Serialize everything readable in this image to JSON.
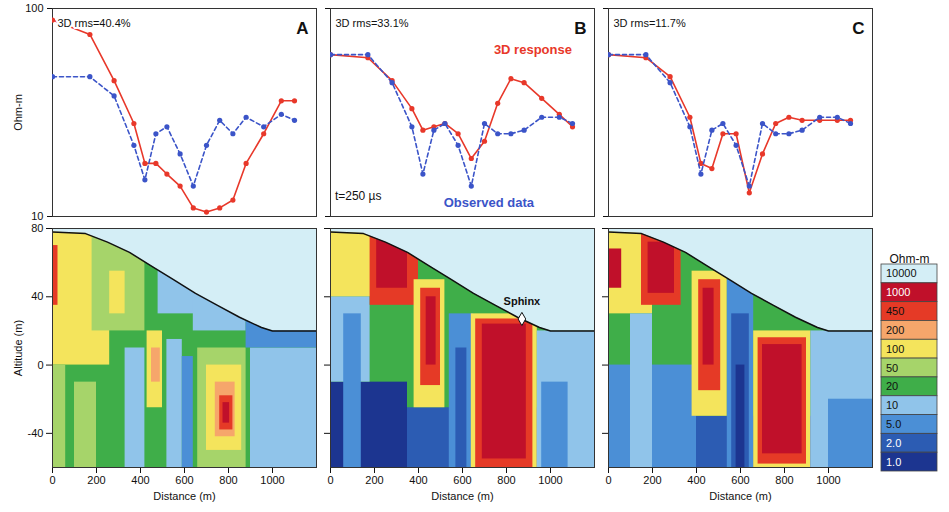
{
  "chart_data": [
    {
      "type": "line",
      "panel_label": "A",
      "title": "3D rms=40.4%",
      "ylabel": "Ohm-m",
      "log": "y",
      "tick_labels": "y",
      "xlim": [
        0,
        1200
      ],
      "ylim": [
        10,
        100
      ],
      "yticks": [
        10,
        100
      ],
      "x": [
        0,
        170,
        280,
        370,
        420,
        470,
        520,
        580,
        640,
        700,
        760,
        820,
        880,
        960,
        1040,
        1100
      ],
      "series": [
        {
          "color": "#e8382a",
          "marker": "circle",
          "line_style": "solid",
          "values": [
            88,
            75,
            45,
            28,
            18,
            18,
            16,
            14,
            11,
            10.5,
            11,
            12,
            18,
            25,
            36,
            36
          ]
        },
        {
          "color": "#3b54c8",
          "marker": "circle",
          "line_style": "dashed",
          "values": [
            47,
            47,
            38,
            22,
            15,
            25,
            27,
            20,
            14,
            22,
            29,
            25,
            30,
            27,
            31,
            29
          ]
        }
      ]
    },
    {
      "type": "heatmap",
      "xlabel": "Distance (m)",
      "ylabel": "Altitude (m)",
      "tick_labels": true,
      "xlim": [
        0,
        1200
      ],
      "ylim": [
        -60,
        80
      ],
      "xticks": [
        0,
        200,
        400,
        600,
        800,
        1000
      ],
      "yticks": [
        -40,
        0,
        40,
        80
      ],
      "background": 20,
      "cells": [
        {
          "x": [
            0,
            260
          ],
          "y": [
            0,
            80
          ],
          "value": 100
        },
        {
          "x": [
            0,
            60
          ],
          "y": [
            -60,
            0
          ],
          "value": 50
        },
        {
          "x": [
            0,
            25
          ],
          "y": [
            35,
            70
          ],
          "value": 450
        },
        {
          "x": [
            180,
            420
          ],
          "y": [
            20,
            75
          ],
          "value": 50
        },
        {
          "x": [
            260,
            330
          ],
          "y": [
            30,
            55
          ],
          "value": 100
        },
        {
          "x": [
            100,
            200
          ],
          "y": [
            -60,
            -10
          ],
          "value": 50
        },
        {
          "x": [
            330,
            420
          ],
          "y": [
            -60,
            10
          ],
          "value": 10
        },
        {
          "x": [
            430,
            500
          ],
          "y": [
            -25,
            20
          ],
          "value": 100
        },
        {
          "x": [
            450,
            490
          ],
          "y": [
            -10,
            10
          ],
          "value": 200
        },
        {
          "x": [
            520,
            590
          ],
          "y": [
            -60,
            15
          ],
          "value": 10
        },
        {
          "x": [
            590,
            640
          ],
          "y": [
            -60,
            5
          ],
          "value": 5
        },
        {
          "x": [
            660,
            880
          ],
          "y": [
            -60,
            10
          ],
          "value": 50
        },
        {
          "x": [
            700,
            860
          ],
          "y": [
            -50,
            0
          ],
          "value": 100
        },
        {
          "x": [
            740,
            830
          ],
          "y": [
            -42,
            -10
          ],
          "value": 200
        },
        {
          "x": [
            760,
            820
          ],
          "y": [
            -38,
            -18
          ],
          "value": 450
        },
        {
          "x": [
            775,
            805
          ],
          "y": [
            -34,
            -22
          ],
          "value": 1000
        },
        {
          "x": [
            900,
            1200
          ],
          "y": [
            -60,
            10
          ],
          "value": 10
        },
        {
          "x": [
            480,
            660
          ],
          "y": [
            30,
            60
          ],
          "value": 10
        },
        {
          "x": [
            640,
            880
          ],
          "y": [
            20,
            45
          ],
          "value": 10
        },
        {
          "x": [
            880,
            1200
          ],
          "y": [
            10,
            30
          ],
          "value": 5
        }
      ],
      "surface": {
        "value": 10000,
        "x": [
          0,
          150,
          250,
          350,
          450,
          550,
          650,
          750,
          850,
          950,
          1000,
          1200
        ],
        "y": [
          78,
          77,
          72,
          66,
          58,
          50,
          42,
          35,
          28,
          22,
          20,
          20
        ]
      }
    },
    {
      "type": "line",
      "panel_label": "B",
      "title": "3D rms=33.1%",
      "log": "y",
      "tick_labels": false,
      "xlim": [
        0,
        1200
      ],
      "ylim": [
        10,
        100
      ],
      "yticks": [
        10,
        100
      ],
      "x": [
        0,
        170,
        280,
        370,
        420,
        470,
        520,
        580,
        640,
        700,
        760,
        820,
        880,
        960,
        1040,
        1100
      ],
      "series": [
        {
          "color": "#e8382a",
          "marker": "circle",
          "line_style": "solid",
          "values": [
            60,
            58,
            45,
            33,
            26,
            27,
            28,
            25,
            19,
            23,
            35,
            46,
            44,
            37,
            31,
            27
          ]
        },
        {
          "color": "#3b54c8",
          "marker": "circle",
          "line_style": "dashed",
          "values": [
            60,
            60,
            44,
            27,
            16,
            26,
            28,
            22,
            14,
            28,
            25,
            25,
            26,
            30,
            30,
            28
          ]
        }
      ],
      "annotations": [
        {
          "text": "3D response",
          "x": 920,
          "y": 63,
          "color": "#e8382a"
        },
        {
          "text": "Observed data",
          "x": 720,
          "y": 11.6,
          "color": "#3b54c8"
        },
        {
          "text": "t=250 µs",
          "x": 20,
          "y": 12.5,
          "color": "#111111"
        }
      ]
    },
    {
      "type": "heatmap",
      "xlabel": "Distance (m)",
      "tick_labels": "x",
      "xlim": [
        0,
        1200
      ],
      "ylim": [
        -60,
        80
      ],
      "xticks": [
        0,
        200,
        400,
        600,
        800,
        1000
      ],
      "yticks": [
        -40,
        0,
        40,
        80
      ],
      "background": 20,
      "cells": [
        {
          "x": [
            0,
            1200
          ],
          "y": [
            -60,
            -25
          ],
          "value": 2
        },
        {
          "x": [
            0,
            350
          ],
          "y": [
            -60,
            -10
          ],
          "value": 1
        },
        {
          "x": [
            0,
            180
          ],
          "y": [
            -10,
            40
          ],
          "value": 10
        },
        {
          "x": [
            60,
            140
          ],
          "y": [
            -60,
            30
          ],
          "value": 5
        },
        {
          "x": [
            0,
            200
          ],
          "y": [
            40,
            80
          ],
          "value": 100
        },
        {
          "x": [
            180,
            400
          ],
          "y": [
            35,
            80
          ],
          "value": 450
        },
        {
          "x": [
            210,
            350
          ],
          "y": [
            45,
            80
          ],
          "value": 1000
        },
        {
          "x": [
            380,
            520
          ],
          "y": [
            -25,
            50
          ],
          "value": 100
        },
        {
          "x": [
            410,
            500
          ],
          "y": [
            -12,
            45
          ],
          "value": 450
        },
        {
          "x": [
            435,
            480
          ],
          "y": [
            0,
            40
          ],
          "value": 1000
        },
        {
          "x": [
            540,
            650
          ],
          "y": [
            -60,
            30
          ],
          "value": 5
        },
        {
          "x": [
            570,
            620
          ],
          "y": [
            -60,
            10
          ],
          "value": 2
        },
        {
          "x": [
            640,
            940
          ],
          "y": [
            -60,
            30
          ],
          "value": 100
        },
        {
          "x": [
            660,
            920
          ],
          "y": [
            -60,
            27
          ],
          "value": 450
        },
        {
          "x": [
            690,
            890
          ],
          "y": [
            -55,
            24
          ],
          "value": 1000
        },
        {
          "x": [
            940,
            1200
          ],
          "y": [
            -60,
            20
          ],
          "value": 10
        },
        {
          "x": [
            960,
            1080
          ],
          "y": [
            -60,
            -10
          ],
          "value": 5
        }
      ],
      "surface": {
        "value": 10000,
        "x": [
          0,
          150,
          250,
          350,
          450,
          550,
          650,
          750,
          850,
          950,
          1000,
          1200
        ],
        "y": [
          78,
          77,
          72,
          66,
          58,
          50,
          42,
          35,
          28,
          22,
          20,
          20
        ]
      },
      "annotations": [
        {
          "text": "Sphinx",
          "x": 870,
          "y": 27
        }
      ]
    },
    {
      "type": "line",
      "panel_label": "C",
      "title": "3D rms=11.7%",
      "log": "y",
      "tick_labels": false,
      "xlim": [
        0,
        1200
      ],
      "ylim": [
        10,
        100
      ],
      "yticks": [
        10,
        100
      ],
      "x": [
        0,
        170,
        280,
        370,
        420,
        470,
        520,
        580,
        640,
        700,
        760,
        820,
        880,
        960,
        1040,
        1100
      ],
      "series": [
        {
          "color": "#e8382a",
          "marker": "circle",
          "line_style": "solid",
          "values": [
            60,
            58,
            47,
            30,
            18,
            17,
            25,
            25,
            13,
            20,
            28,
            30,
            29,
            29,
            29,
            29
          ]
        },
        {
          "color": "#3b54c8",
          "marker": "circle",
          "line_style": "dashed",
          "values": [
            60,
            60,
            44,
            27,
            16,
            26,
            28,
            22,
            14,
            28,
            25,
            25,
            26,
            30,
            30,
            28
          ]
        }
      ]
    },
    {
      "type": "heatmap",
      "xlabel": "Distance (m)",
      "tick_labels": "x",
      "xlim": [
        0,
        1200
      ],
      "ylim": [
        -60,
        80
      ],
      "xticks": [
        0,
        200,
        400,
        600,
        800,
        1000
      ],
      "yticks": [
        -40,
        0,
        40,
        80
      ],
      "background": 20,
      "cells": [
        {
          "x": [
            0,
            1200
          ],
          "y": [
            -60,
            -30
          ],
          "value": 2
        },
        {
          "x": [
            0,
            400
          ],
          "y": [
            -60,
            0
          ],
          "value": 5
        },
        {
          "x": [
            0,
            200
          ],
          "y": [
            30,
            80
          ],
          "value": 100
        },
        {
          "x": [
            0,
            60
          ],
          "y": [
            45,
            68
          ],
          "value": 1000
        },
        {
          "x": [
            150,
            330
          ],
          "y": [
            35,
            78
          ],
          "value": 450
        },
        {
          "x": [
            180,
            300
          ],
          "y": [
            42,
            72
          ],
          "value": 1000
        },
        {
          "x": [
            100,
            200
          ],
          "y": [
            -60,
            30
          ],
          "value": 10
        },
        {
          "x": [
            380,
            540
          ],
          "y": [
            -30,
            55
          ],
          "value": 100
        },
        {
          "x": [
            410,
            510
          ],
          "y": [
            -15,
            50
          ],
          "value": 450
        },
        {
          "x": [
            430,
            480
          ],
          "y": [
            0,
            45
          ],
          "value": 1000
        },
        {
          "x": [
            540,
            660
          ],
          "y": [
            -60,
            50
          ],
          "value": 5
        },
        {
          "x": [
            560,
            640
          ],
          "y": [
            -60,
            30
          ],
          "value": 2
        },
        {
          "x": [
            580,
            620
          ],
          "y": [
            -60,
            0
          ],
          "value": 1
        },
        {
          "x": [
            660,
            920
          ],
          "y": [
            -60,
            20
          ],
          "value": 100
        },
        {
          "x": [
            680,
            900
          ],
          "y": [
            -58,
            16
          ],
          "value": 450
        },
        {
          "x": [
            700,
            880
          ],
          "y": [
            -52,
            12
          ],
          "value": 1000
        },
        {
          "x": [
            920,
            1200
          ],
          "y": [
            -60,
            20
          ],
          "value": 10
        },
        {
          "x": [
            1000,
            1200
          ],
          "y": [
            -60,
            -20
          ],
          "value": 5
        }
      ],
      "surface": {
        "value": 10000,
        "x": [
          0,
          150,
          250,
          350,
          450,
          550,
          650,
          750,
          850,
          950,
          1000,
          1200
        ],
        "y": [
          78,
          77,
          72,
          66,
          58,
          50,
          42,
          35,
          28,
          22,
          20,
          20
        ]
      }
    },
    {
      "type": "colorbar",
      "title": "Ohm-m",
      "ticks": [
        10000,
        1000,
        450,
        200,
        100,
        50,
        20,
        10,
        {
          "value": 5,
          "label": "5.0"
        },
        {
          "value": 2,
          "label": "2.0"
        },
        {
          "value": 1,
          "label": "1.0"
        }
      ],
      "colors": [
        "#d4eef6",
        "#c0102a",
        "#e53a26",
        "#f6a66b",
        "#f4e45c",
        "#a6d46a",
        "#3fae49",
        "#90c4ea",
        "#4b8fd6",
        "#2c5cb3",
        "#1c3590"
      ]
    }
  ]
}
